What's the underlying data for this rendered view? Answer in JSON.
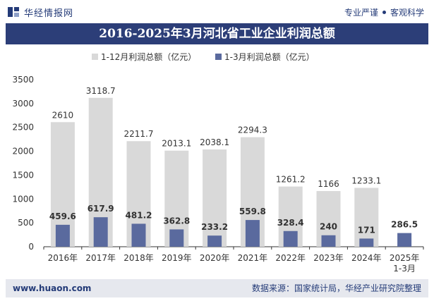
{
  "header": {
    "brand_name": "华经情报网",
    "slogan_left": "专业严谨",
    "slogan_right": "客观科学"
  },
  "colors": {
    "brand": "#243b78",
    "title_bg": "#2c3e78",
    "series_full_year": "#d9d9d9",
    "series_q1": "#5a6a9e"
  },
  "chart_data": {
    "type": "bar",
    "title": "2016-2025年3月河北省工业企业利润总额",
    "categories": [
      "2016年",
      "2017年",
      "2018年",
      "2019年",
      "2020年",
      "2021年",
      "2022年",
      "2023年",
      "2024年",
      "2025年\n1-3月"
    ],
    "series": [
      {
        "name": "1-12月利润总额（亿元）",
        "values": [
          2610,
          3118.7,
          2211.7,
          2013.1,
          2038.1,
          2294.3,
          1261.2,
          1166,
          1233.1,
          null
        ]
      },
      {
        "name": "1-3月利润总额（亿元）",
        "values": [
          459.6,
          617.9,
          481.2,
          362.8,
          233.2,
          559.8,
          328.4,
          240,
          171,
          286.5
        ]
      }
    ],
    "ylim": [
      0,
      3500
    ],
    "yticks": [
      0,
      500,
      1000,
      1500,
      2000,
      2500,
      3000,
      3500
    ],
    "grid": false,
    "legend": "top-center"
  },
  "footer": {
    "url": "www.huaon.com",
    "source": "数据来源：国家统计局，华经产业研究院整理"
  }
}
